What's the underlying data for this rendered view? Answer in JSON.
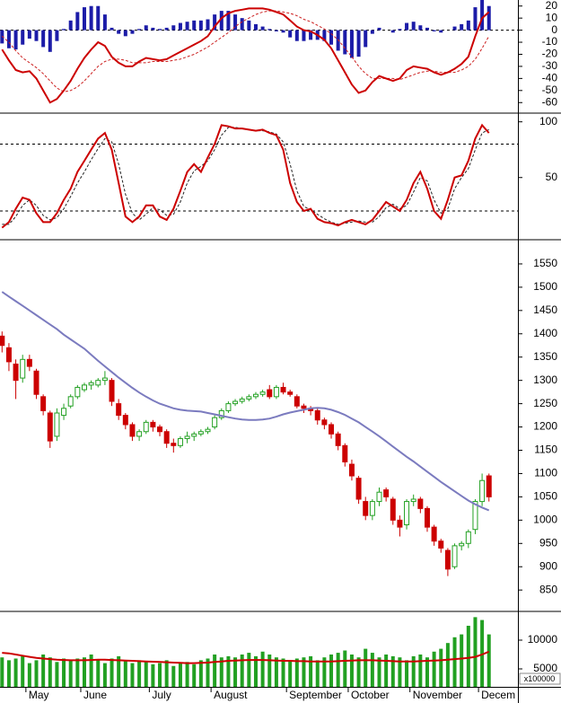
{
  "chart_data": [
    {
      "type": "combo",
      "ylim": [
        -68,
        25
      ],
      "yticks": [
        20,
        10,
        0,
        -10,
        -20,
        -30,
        -40,
        -50,
        -60
      ],
      "levels": [
        0
      ],
      "series": [
        {
          "style": "bar",
          "color": "#1c1ca8",
          "values": [
            -11,
            -15,
            -16,
            -12,
            -7,
            -9,
            -14,
            -18,
            -9,
            1,
            8,
            15,
            19,
            20,
            20,
            13,
            2,
            -3,
            -5,
            -3,
            1,
            4,
            2,
            1,
            2,
            4,
            6,
            7,
            8,
            8,
            9,
            13,
            16,
            16,
            13,
            10,
            8,
            5,
            3,
            1,
            -1,
            -2,
            -6,
            -9,
            -9,
            -8,
            -8,
            -9,
            -12,
            -17,
            -20,
            -23,
            -22,
            -14,
            -3,
            2,
            0,
            -2,
            1,
            6,
            7,
            4,
            2,
            -1,
            -2,
            0,
            3,
            5,
            8,
            19,
            25,
            20
          ]
        },
        {
          "style": "dashed",
          "color": "#cc2020",
          "values": [
            -5,
            -10,
            -17,
            -23,
            -27,
            -31,
            -36,
            -42,
            -48,
            -51,
            -50,
            -47,
            -42,
            -36,
            -30,
            -26,
            -24,
            -24,
            -25,
            -27,
            -27,
            -27,
            -26,
            -26,
            -26,
            -25,
            -24,
            -22,
            -20,
            -17,
            -14,
            -10,
            -6,
            -2,
            3,
            7,
            10,
            13,
            15,
            16,
            16,
            15,
            14,
            12,
            9,
            7,
            4,
            1,
            -3,
            -8,
            -15,
            -22,
            -30,
            -36,
            -40,
            -40,
            -40,
            -40,
            -41,
            -39,
            -37,
            -35,
            -34,
            -34,
            -35,
            -35,
            -35,
            -33,
            -30,
            -24,
            -15,
            -5
          ]
        },
        {
          "style": "line",
          "color": "#cc0000",
          "values": [
            -16,
            -25,
            -33,
            -35,
            -34,
            -40,
            -50,
            -60,
            -57,
            -50,
            -42,
            -32,
            -23,
            -16,
            -10,
            -13,
            -22,
            -27,
            -30,
            -30,
            -26,
            -23,
            -24,
            -25,
            -24,
            -21,
            -18,
            -15,
            -12,
            -9,
            -5,
            3,
            10,
            14,
            16,
            17,
            18,
            18,
            18,
            17,
            15,
            13,
            8,
            3,
            0,
            -1,
            -4,
            -8,
            -15,
            -25,
            -35,
            -45,
            -52,
            -50,
            -43,
            -38,
            -40,
            -42,
            -40,
            -33,
            -30,
            -31,
            -32,
            -35,
            -37,
            -35,
            -32,
            -28,
            -22,
            -5,
            10,
            15
          ]
        }
      ]
    },
    {
      "type": "line",
      "ylim": [
        -5,
        107
      ],
      "yticks": [
        50,
        100
      ],
      "levels": [
        20,
        80
      ],
      "series": [
        {
          "style": "dashed",
          "color": "#222222",
          "values": [
            8,
            8,
            15,
            25,
            30,
            25,
            16,
            12,
            14,
            22,
            33,
            45,
            55,
            66,
            76,
            85,
            82,
            62,
            35,
            18,
            12,
            17,
            23,
            21,
            16,
            17,
            28,
            45,
            56,
            60,
            65,
            75,
            88,
            95,
            95,
            94,
            93,
            92,
            92,
            91,
            89,
            82,
            62,
            38,
            24,
            21,
            17,
            13,
            10,
            8,
            9,
            10,
            11,
            10,
            10,
            15,
            23,
            26,
            22,
            25,
            37,
            50,
            47,
            30,
            18,
            22,
            40,
            50,
            58,
            75,
            90,
            93
          ]
        },
        {
          "style": "line",
          "color": "#cc0000",
          "values": [
            5,
            10,
            22,
            32,
            30,
            18,
            10,
            10,
            18,
            30,
            40,
            55,
            65,
            75,
            85,
            90,
            75,
            45,
            15,
            10,
            15,
            25,
            25,
            15,
            12,
            22,
            38,
            55,
            62,
            55,
            68,
            80,
            97,
            96,
            94,
            94,
            93,
            92,
            93,
            90,
            88,
            75,
            45,
            28,
            20,
            22,
            13,
            10,
            9,
            7,
            10,
            12,
            10,
            8,
            12,
            20,
            28,
            24,
            20,
            30,
            45,
            55,
            40,
            20,
            13,
            30,
            50,
            52,
            65,
            85,
            97,
            90
          ]
        }
      ]
    },
    {
      "type": "candlestick",
      "ylim": [
        806,
        1600
      ],
      "yticks": [
        850,
        900,
        950,
        1000,
        1050,
        1100,
        1150,
        1200,
        1250,
        1300,
        1350,
        1400,
        1450,
        1500,
        1550
      ],
      "up_color": "#22a022",
      "down_color": "#cc0000",
      "open": [
        1395,
        1370,
        1335,
        1305,
        1345,
        1320,
        1265,
        1230,
        1180,
        1225,
        1245,
        1265,
        1280,
        1290,
        1290,
        1300,
        1300,
        1250,
        1225,
        1205,
        1180,
        1190,
        1210,
        1200,
        1190,
        1165,
        1160,
        1175,
        1180,
        1185,
        1190,
        1200,
        1220,
        1235,
        1250,
        1255,
        1260,
        1265,
        1270,
        1280,
        1265,
        1285,
        1275,
        1265,
        1245,
        1240,
        1235,
        1215,
        1205,
        1185,
        1160,
        1120,
        1090,
        1040,
        1010,
        1040,
        1065,
        1045,
        1000,
        990,
        1040,
        1045,
        1025,
        985,
        955,
        935,
        900,
        945,
        950,
        980,
        1040,
        1095
      ],
      "high": [
        1405,
        1380,
        1345,
        1355,
        1355,
        1325,
        1270,
        1235,
        1240,
        1250,
        1270,
        1290,
        1295,
        1300,
        1305,
        1320,
        1305,
        1260,
        1230,
        1210,
        1195,
        1215,
        1215,
        1205,
        1195,
        1175,
        1180,
        1190,
        1190,
        1195,
        1200,
        1225,
        1240,
        1255,
        1260,
        1265,
        1270,
        1275,
        1280,
        1290,
        1290,
        1295,
        1280,
        1270,
        1250,
        1245,
        1240,
        1220,
        1210,
        1190,
        1165,
        1130,
        1095,
        1050,
        1045,
        1070,
        1070,
        1050,
        1010,
        1045,
        1055,
        1050,
        1030,
        990,
        960,
        940,
        950,
        955,
        980,
        1045,
        1100,
        1100
      ],
      "low": [
        1360,
        1320,
        1260,
        1295,
        1320,
        1260,
        1225,
        1155,
        1170,
        1215,
        1240,
        1260,
        1275,
        1280,
        1285,
        1290,
        1245,
        1215,
        1195,
        1170,
        1170,
        1185,
        1190,
        1180,
        1155,
        1145,
        1155,
        1165,
        1170,
        1180,
        1185,
        1195,
        1215,
        1230,
        1245,
        1250,
        1255,
        1260,
        1265,
        1260,
        1260,
        1270,
        1265,
        1240,
        1230,
        1225,
        1205,
        1195,
        1175,
        1150,
        1115,
        1085,
        1035,
        1000,
        1000,
        1030,
        1040,
        990,
        965,
        980,
        1030,
        1015,
        975,
        945,
        930,
        880,
        895,
        935,
        940,
        970,
        1030,
        1040
      ],
      "close": [
        1375,
        1340,
        1300,
        1345,
        1330,
        1270,
        1235,
        1170,
        1230,
        1240,
        1265,
        1285,
        1290,
        1295,
        1300,
        1305,
        1255,
        1225,
        1205,
        1180,
        1190,
        1210,
        1200,
        1190,
        1165,
        1160,
        1175,
        1180,
        1185,
        1190,
        1195,
        1220,
        1235,
        1250,
        1255,
        1260,
        1265,
        1270,
        1275,
        1265,
        1285,
        1275,
        1270,
        1245,
        1240,
        1235,
        1215,
        1205,
        1185,
        1160,
        1125,
        1095,
        1045,
        1010,
        1040,
        1060,
        1050,
        1000,
        985,
        1040,
        1045,
        1025,
        985,
        955,
        940,
        895,
        945,
        950,
        975,
        1040,
        1085,
        1050
      ],
      "series": [
        {
          "style": "line",
          "color": "#7b7bbf",
          "values": [
            1490,
            1480,
            1470,
            1460,
            1450,
            1440,
            1430,
            1420,
            1410,
            1398,
            1388,
            1378,
            1368,
            1355,
            1342,
            1330,
            1318,
            1306,
            1295,
            1284,
            1274,
            1265,
            1257,
            1250,
            1245,
            1240,
            1237,
            1235,
            1234,
            1233,
            1230,
            1227,
            1224,
            1221,
            1218,
            1216,
            1215,
            1215,
            1216,
            1218,
            1222,
            1227,
            1231,
            1234,
            1237,
            1240,
            1241,
            1240,
            1237,
            1232,
            1226,
            1218,
            1210,
            1200,
            1190,
            1180,
            1169,
            1158,
            1147,
            1136,
            1126,
            1115,
            1104,
            1093,
            1082,
            1072,
            1062,
            1052,
            1042,
            1034,
            1027,
            1021
          ]
        }
      ]
    },
    {
      "type": "combo",
      "ylim": [
        1875,
        14840
      ],
      "yticks": [
        10000,
        5000
      ],
      "unit_label": "x100000",
      "categories": [
        null,
        null,
        null,
        null,
        "May",
        null,
        null,
        null,
        null,
        null,
        null,
        null,
        "June",
        null,
        null,
        null,
        null,
        null,
        null,
        null,
        null,
        null,
        "July",
        null,
        null,
        null,
        null,
        null,
        null,
        null,
        null,
        "August",
        null,
        null,
        null,
        null,
        null,
        null,
        null,
        null,
        null,
        null,
        "September",
        null,
        null,
        null,
        null,
        null,
        null,
        null,
        null,
        "October",
        null,
        null,
        null,
        null,
        null,
        null,
        null,
        null,
        "November",
        null,
        null,
        null,
        null,
        null,
        null,
        null,
        null,
        null,
        "Decem",
        null
      ],
      "series": [
        {
          "style": "bar",
          "color": "#22a022",
          "values": [
            7000,
            6500,
            6800,
            7200,
            6000,
            6500,
            7500,
            7000,
            6200,
            6800,
            6500,
            6800,
            7000,
            7500,
            6500,
            6000,
            6800,
            7200,
            6500,
            6000,
            6500,
            6200,
            5800,
            6000,
            6500,
            5500,
            6000,
            6200,
            5800,
            6500,
            6800,
            7500,
            7000,
            7200,
            7000,
            7500,
            7800,
            7200,
            8000,
            7500,
            7000,
            6800,
            6500,
            6800,
            7000,
            7200,
            6500,
            7000,
            7500,
            7800,
            8200,
            7500,
            7000,
            8500,
            7800,
            7000,
            7500,
            7200,
            7000,
            6500,
            7200,
            7500,
            7000,
            8000,
            8500,
            9500,
            10500,
            11000,
            12500,
            14000,
            13500,
            11000
          ]
        },
        {
          "style": "line",
          "color": "#cc0000",
          "values": [
            7800,
            7700,
            7500,
            7300,
            7100,
            6900,
            6800,
            6700,
            6600,
            6550,
            6500,
            6500,
            6500,
            6550,
            6600,
            6600,
            6550,
            6500,
            6450,
            6400,
            6350,
            6300,
            6250,
            6200,
            6150,
            6100,
            6050,
            6000,
            6000,
            6050,
            6100,
            6200,
            6300,
            6400,
            6450,
            6500,
            6550,
            6550,
            6550,
            6500,
            6450,
            6400,
            6400,
            6350,
            6350,
            6300,
            6300,
            6300,
            6300,
            6350,
            6400,
            6450,
            6500,
            6500,
            6500,
            6450,
            6400,
            6350,
            6300,
            6300,
            6300,
            6350,
            6400,
            6450,
            6500,
            6600,
            6700,
            6800,
            6900,
            7100,
            7500,
            8000
          ]
        }
      ]
    }
  ]
}
